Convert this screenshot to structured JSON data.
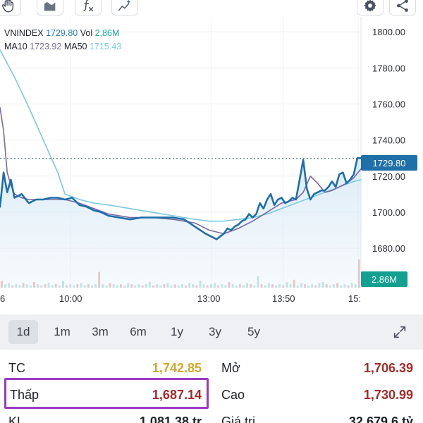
{
  "toolbar": {
    "tools": [
      {
        "name": "hand-tool",
        "icon": "hand-icon"
      },
      {
        "name": "draw-tool",
        "icon": "curve-icon"
      },
      {
        "name": "indicator-tool",
        "icon": "function-icon"
      },
      {
        "name": "compare-tool",
        "icon": "sparkle-trend-icon"
      }
    ],
    "actions": [
      {
        "name": "settings",
        "icon": "gear-icon"
      },
      {
        "name": "share",
        "icon": "share-icon"
      }
    ]
  },
  "legend": {
    "symbol": "VNINDEX",
    "price": "1729.80",
    "vol_label": "Vol",
    "vol_value": "2,86M",
    "ma10_label": "MA10",
    "ma10_value": "1723.92",
    "ma50_label": "MA50",
    "ma50_value": "1715.43"
  },
  "chart_data": {
    "type": "line",
    "yaxis": {
      "ticks": [
        "1800.00",
        "1780.00",
        "1760.00",
        "1740.00",
        "1720.00",
        "1700.00",
        "1680.00"
      ],
      "ylim": [
        1673,
        1802
      ]
    },
    "xaxis": {
      "ticks": [
        "6",
        "10:00",
        "13:00",
        "13:50",
        "15:"
      ]
    },
    "current_price": "1729.80",
    "current_volume": "2.86M",
    "reference_line": 1729.8,
    "series": [
      {
        "name": "VNINDEX",
        "color": "#1f6fa8",
        "x": [
          0,
          1,
          2,
          3,
          4,
          6,
          8,
          10,
          12,
          14,
          16,
          18,
          20,
          22,
          24,
          26,
          28,
          30,
          33,
          36,
          39,
          42,
          45,
          48,
          51,
          54,
          57,
          60,
          62,
          63,
          64,
          65,
          66,
          67,
          68,
          69,
          70,
          71,
          72,
          73,
          74,
          75,
          76,
          77,
          78,
          79,
          80,
          81,
          82,
          83,
          84,
          85,
          86,
          87,
          88,
          89,
          90,
          91,
          92,
          93,
          94,
          95,
          96,
          97,
          98,
          99,
          100
        ],
        "values": [
          1703,
          1722,
          1711,
          1718,
          1708,
          1710,
          1705,
          1707,
          1707,
          1708,
          1708,
          1707,
          1708,
          1704,
          1703,
          1701,
          1700,
          1698,
          1697,
          1696,
          1697,
          1697,
          1697,
          1697,
          1696,
          1692,
          1688,
          1685,
          1688,
          1691,
          1690,
          1692,
          1693,
          1695,
          1696,
          1699,
          1697,
          1699,
          1705,
          1702,
          1707,
          1710,
          1704,
          1707,
          1708,
          1705,
          1706,
          1708,
          1707,
          1718,
          1729,
          1713,
          1707,
          1710,
          1711,
          1712,
          1712,
          1714,
          1717,
          1714,
          1721,
          1722,
          1716,
          1718,
          1721,
          1730,
          1730
        ]
      },
      {
        "name": "MA10",
        "color": "#7a68a6",
        "x": [
          0,
          1,
          2,
          3,
          4,
          6,
          8,
          10,
          14,
          18,
          22,
          26,
          30,
          36,
          42,
          48,
          54,
          58,
          62,
          66,
          70,
          74,
          78,
          82,
          84,
          86,
          88,
          90,
          92,
          94,
          96,
          98,
          100
        ],
        "values": [
          1758,
          1745,
          1722,
          1715,
          1710,
          1708,
          1707,
          1707,
          1707,
          1707,
          1705,
          1702,
          1699,
          1697,
          1697,
          1696,
          1694,
          1690,
          1688,
          1691,
          1695,
          1700,
          1705,
          1707,
          1711,
          1720,
          1716,
          1711,
          1712,
          1714,
          1716,
          1719,
          1724
        ]
      },
      {
        "name": "MA50",
        "color": "#7cc9e0",
        "x": [
          0,
          4,
          8,
          12,
          16,
          18,
          22,
          26,
          30,
          36,
          42,
          48,
          54,
          58,
          62,
          66,
          70,
          74,
          78,
          82,
          86,
          90,
          94,
          98,
          100
        ],
        "values": [
          1790,
          1775,
          1758,
          1740,
          1722,
          1710,
          1707,
          1705,
          1704,
          1702,
          1700,
          1698,
          1696,
          1695,
          1695,
          1696,
          1697,
          1699,
          1702,
          1705,
          1708,
          1711,
          1714,
          1717,
          1718
        ]
      }
    ],
    "volume": {
      "color": "#e6a3a3",
      "color_alt": "#9fd8d0",
      "values": [
        6,
        3,
        4,
        2,
        3,
        2,
        4,
        3,
        2,
        5,
        3,
        2,
        3,
        4,
        2,
        3,
        2,
        6,
        2,
        3,
        2,
        3,
        4,
        2,
        3,
        2,
        3,
        14,
        3,
        2,
        4,
        3,
        2,
        3,
        2,
        4,
        3,
        2,
        3,
        2,
        3,
        5,
        2,
        3,
        2,
        3,
        4,
        2,
        3,
        2,
        3,
        2,
        4,
        3,
        2,
        6,
        3,
        2,
        3,
        4,
        2,
        3,
        2,
        5,
        3,
        2,
        3,
        2,
        4,
        3,
        2,
        10,
        3,
        2,
        4,
        3,
        2,
        3,
        2,
        5,
        3,
        7,
        2,
        4,
        3,
        2,
        3,
        2,
        4,
        5,
        3,
        2,
        3,
        4,
        2,
        3,
        2,
        4,
        3,
        25
      ]
    },
    "grid": true
  },
  "periods": {
    "items": [
      "1d",
      "1m",
      "3m",
      "6m",
      "1y",
      "3y",
      "5y"
    ],
    "active": "1d"
  },
  "stats": {
    "tc_label": "TC",
    "tc_value": "1,742.85",
    "mo_label": "Mở",
    "mo_value": "1,706.39",
    "thap_label": "Thấp",
    "thap_value": "1,687.14",
    "cao_label": "Cao",
    "cao_value": "1,730.99",
    "kl_label": "KL",
    "kl_value": "1,081.38 tr",
    "gt_label": "Giá trị",
    "gt_value": "32,679.6 tỷ"
  },
  "colors": {
    "price_line": "#1f6fa8",
    "ceiling_yellow": "#d4a62a",
    "down_red": "#a52a2a",
    "highlight_purple": "#9b3bc4",
    "price_tag": "#1f6fa8",
    "volume_tag": "#13a091"
  }
}
